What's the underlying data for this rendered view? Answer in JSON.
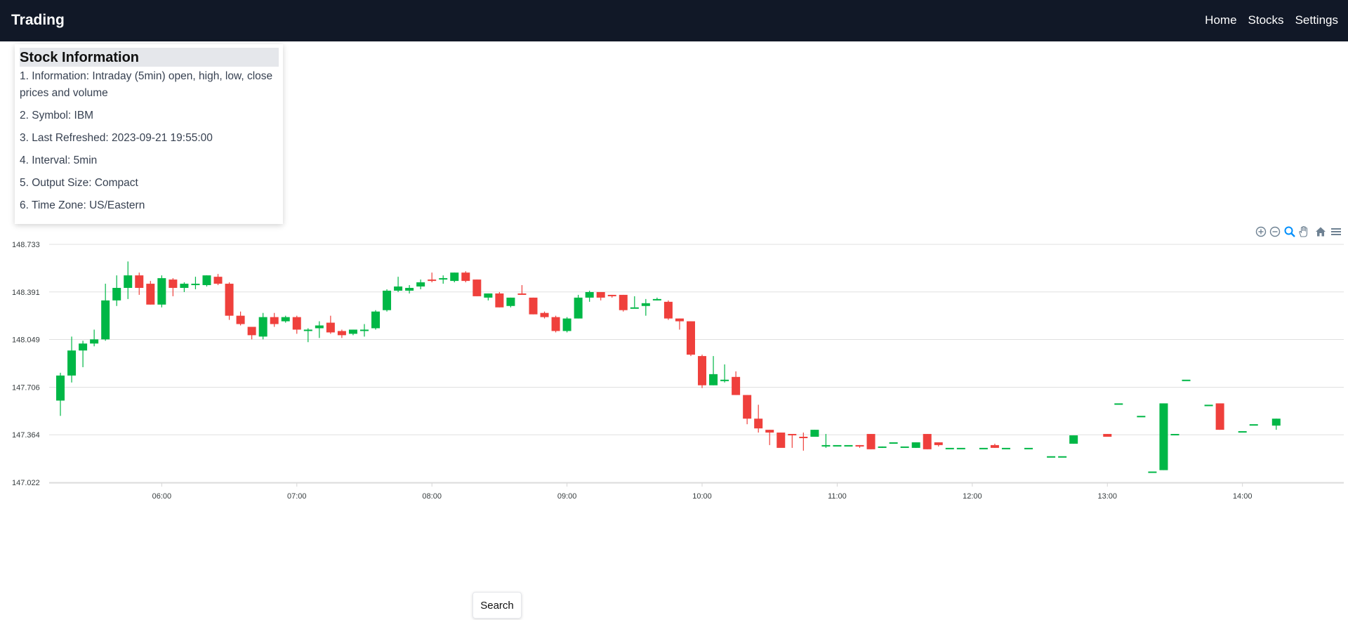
{
  "header": {
    "brand": "Trading",
    "nav": [
      "Home",
      "Stocks",
      "Settings"
    ]
  },
  "info": {
    "title": "Stock Information",
    "lines": [
      "1. Information: Intraday (5min) open, high, low, close prices and volume",
      "2. Symbol: IBM",
      "3. Last Refreshed: 2023-09-21 19:55:00",
      "4. Interval: 5min",
      "5. Output Size: Compact",
      "6. Time Zone: US/Eastern"
    ]
  },
  "toolbar": {
    "icons": [
      "zoom-in-icon",
      "zoom-out-icon",
      "selection-zoom-icon",
      "pan-hand-icon",
      "home-icon",
      "menu-icon"
    ],
    "active": "selection-zoom-icon",
    "color": "#6e8192",
    "active_color": "#008ffb"
  },
  "search": {
    "label": "Search"
  },
  "chart_data": {
    "type": "candlestick",
    "up_color": "#00b746",
    "down_color": "#ef403c",
    "yticks": [
      "148.733",
      "148.391",
      "148.049",
      "147.706",
      "147.364",
      "147.022"
    ],
    "ylim": [
      147.022,
      148.733
    ],
    "xlim": [
      "05:10",
      "14:45"
    ],
    "xticks": [
      "06:00",
      "07:00",
      "08:00",
      "09:00",
      "10:00",
      "11:00",
      "12:00",
      "13:00",
      "14:00"
    ],
    "candles": [
      {
        "t": "05:15",
        "o": 147.61,
        "h": 147.81,
        "l": 147.5,
        "c": 147.79
      },
      {
        "t": "05:20",
        "o": 147.79,
        "h": 148.07,
        "l": 147.74,
        "c": 147.97
      },
      {
        "t": "05:25",
        "o": 147.97,
        "h": 148.04,
        "l": 147.85,
        "c": 148.02
      },
      {
        "t": "05:30",
        "o": 148.02,
        "h": 148.12,
        "l": 148.0,
        "c": 148.05
      },
      {
        "t": "05:35",
        "o": 148.05,
        "h": 148.45,
        "l": 148.04,
        "c": 148.33
      },
      {
        "t": "05:40",
        "o": 148.33,
        "h": 148.51,
        "l": 148.29,
        "c": 148.42
      },
      {
        "t": "05:45",
        "o": 148.42,
        "h": 148.61,
        "l": 148.34,
        "c": 148.51
      },
      {
        "t": "05:50",
        "o": 148.51,
        "h": 148.53,
        "l": 148.37,
        "c": 148.42
      },
      {
        "t": "05:55",
        "o": 148.45,
        "h": 148.47,
        "l": 148.3,
        "c": 148.3
      },
      {
        "t": "06:00",
        "o": 148.3,
        "h": 148.51,
        "l": 148.28,
        "c": 148.49
      },
      {
        "t": "06:05",
        "o": 148.48,
        "h": 148.49,
        "l": 148.36,
        "c": 148.42
      },
      {
        "t": "06:10",
        "o": 148.42,
        "h": 148.46,
        "l": 148.39,
        "c": 148.45
      },
      {
        "t": "06:15",
        "o": 148.45,
        "h": 148.5,
        "l": 148.41,
        "c": 148.45
      },
      {
        "t": "06:20",
        "o": 148.44,
        "h": 148.51,
        "l": 148.43,
        "c": 148.51
      },
      {
        "t": "06:25",
        "o": 148.5,
        "h": 148.52,
        "l": 148.44,
        "c": 148.45
      },
      {
        "t": "06:30",
        "o": 148.45,
        "h": 148.46,
        "l": 148.19,
        "c": 148.22
      },
      {
        "t": "06:35",
        "o": 148.22,
        "h": 148.25,
        "l": 148.15,
        "c": 148.16
      },
      {
        "t": "06:40",
        "o": 148.14,
        "h": 148.14,
        "l": 148.05,
        "c": 148.08
      },
      {
        "t": "06:45",
        "o": 148.07,
        "h": 148.24,
        "l": 148.05,
        "c": 148.21
      },
      {
        "t": "06:50",
        "o": 148.21,
        "h": 148.24,
        "l": 148.14,
        "c": 148.16
      },
      {
        "t": "06:55",
        "o": 148.18,
        "h": 148.22,
        "l": 148.17,
        "c": 148.21
      },
      {
        "t": "07:00",
        "o": 148.21,
        "h": 148.22,
        "l": 148.09,
        "c": 148.12
      },
      {
        "t": "07:05",
        "o": 148.11,
        "h": 148.13,
        "l": 148.03,
        "c": 148.12
      },
      {
        "t": "07:10",
        "o": 148.13,
        "h": 148.18,
        "l": 148.06,
        "c": 148.15
      },
      {
        "t": "07:15",
        "o": 148.17,
        "h": 148.22,
        "l": 148.09,
        "c": 148.1
      },
      {
        "t": "07:20",
        "o": 148.11,
        "h": 148.12,
        "l": 148.06,
        "c": 148.08
      },
      {
        "t": "07:25",
        "o": 148.09,
        "h": 148.12,
        "l": 148.08,
        "c": 148.12
      },
      {
        "t": "07:30",
        "o": 148.12,
        "h": 148.16,
        "l": 148.07,
        "c": 148.12
      },
      {
        "t": "07:35",
        "o": 148.13,
        "h": 148.26,
        "l": 148.12,
        "c": 148.25
      },
      {
        "t": "07:40",
        "o": 148.26,
        "h": 148.41,
        "l": 148.25,
        "c": 148.4
      },
      {
        "t": "07:45",
        "o": 148.4,
        "h": 148.5,
        "l": 148.39,
        "c": 148.43
      },
      {
        "t": "07:50",
        "o": 148.4,
        "h": 148.44,
        "l": 148.38,
        "c": 148.42
      },
      {
        "t": "07:55",
        "o": 148.43,
        "h": 148.48,
        "l": 148.41,
        "c": 148.46
      },
      {
        "t": "08:00",
        "o": 148.48,
        "h": 148.53,
        "l": 148.46,
        "c": 148.47
      },
      {
        "t": "08:05",
        "o": 148.49,
        "h": 148.51,
        "l": 148.45,
        "c": 148.49
      },
      {
        "t": "08:10",
        "o": 148.47,
        "h": 148.53,
        "l": 148.46,
        "c": 148.53
      },
      {
        "t": "08:15",
        "o": 148.53,
        "h": 148.54,
        "l": 148.46,
        "c": 148.47
      },
      {
        "t": "08:20",
        "o": 148.48,
        "h": 148.48,
        "l": 148.36,
        "c": 148.36
      },
      {
        "t": "08:25",
        "o": 148.35,
        "h": 148.38,
        "l": 148.33,
        "c": 148.38
      },
      {
        "t": "08:30",
        "o": 148.38,
        "h": 148.39,
        "l": 148.28,
        "c": 148.28
      },
      {
        "t": "08:35",
        "o": 148.29,
        "h": 148.35,
        "l": 148.28,
        "c": 148.35
      },
      {
        "t": "08:40",
        "o": 148.38,
        "h": 148.44,
        "l": 148.37,
        "c": 148.37
      },
      {
        "t": "08:45",
        "o": 148.35,
        "h": 148.35,
        "l": 148.23,
        "c": 148.23
      },
      {
        "t": "08:50",
        "o": 148.24,
        "h": 148.25,
        "l": 148.2,
        "c": 148.21
      },
      {
        "t": "08:55",
        "o": 148.21,
        "h": 148.22,
        "l": 148.1,
        "c": 148.11
      },
      {
        "t": "09:00",
        "o": 148.11,
        "h": 148.21,
        "l": 148.1,
        "c": 148.2
      },
      {
        "t": "09:05",
        "o": 148.2,
        "h": 148.37,
        "l": 148.2,
        "c": 148.35
      },
      {
        "t": "09:10",
        "o": 148.35,
        "h": 148.4,
        "l": 148.32,
        "c": 148.39
      },
      {
        "t": "09:15",
        "o": 148.39,
        "h": 148.39,
        "l": 148.33,
        "c": 148.35
      },
      {
        "t": "09:20",
        "o": 148.37,
        "h": 148.37,
        "l": 148.35,
        "c": 148.36
      },
      {
        "t": "09:25",
        "o": 148.37,
        "h": 148.37,
        "l": 148.25,
        "c": 148.26
      },
      {
        "t": "09:30",
        "o": 148.28,
        "h": 148.36,
        "l": 148.28,
        "c": 148.28
      },
      {
        "t": "09:35",
        "o": 148.29,
        "h": 148.34,
        "l": 148.22,
        "c": 148.31
      },
      {
        "t": "09:40",
        "o": 148.33,
        "h": 148.35,
        "l": 148.33,
        "c": 148.34
      },
      {
        "t": "09:45",
        "o": 148.32,
        "h": 148.33,
        "l": 148.19,
        "c": 148.2
      },
      {
        "t": "09:50",
        "o": 148.2,
        "h": 148.2,
        "l": 148.12,
        "c": 148.18
      },
      {
        "t": "09:55",
        "o": 148.18,
        "h": 148.18,
        "l": 147.93,
        "c": 147.94
      },
      {
        "t": "10:00",
        "o": 147.93,
        "h": 147.94,
        "l": 147.7,
        "c": 147.72
      },
      {
        "t": "10:05",
        "o": 147.72,
        "h": 147.93,
        "l": 147.72,
        "c": 147.8
      },
      {
        "t": "10:10",
        "o": 147.76,
        "h": 147.87,
        "l": 147.74,
        "c": 147.76
      },
      {
        "t": "10:15",
        "o": 147.78,
        "h": 147.82,
        "l": 147.65,
        "c": 147.65
      },
      {
        "t": "10:20",
        "o": 147.65,
        "h": 147.65,
        "l": 147.44,
        "c": 147.48
      },
      {
        "t": "10:25",
        "o": 147.48,
        "h": 147.58,
        "l": 147.38,
        "c": 147.41
      },
      {
        "t": "10:30",
        "o": 147.4,
        "h": 147.4,
        "l": 147.29,
        "c": 147.38
      },
      {
        "t": "10:35",
        "o": 147.38,
        "h": 147.38,
        "l": 147.28,
        "c": 147.27
      },
      {
        "t": "10:40",
        "o": 147.37,
        "h": 147.37,
        "l": 147.27,
        "c": 147.36
      },
      {
        "t": "10:45",
        "o": 147.35,
        "h": 147.38,
        "l": 147.25,
        "c": 147.34
      },
      {
        "t": "10:50",
        "o": 147.35,
        "h": 147.4,
        "l": 147.35,
        "c": 147.4
      },
      {
        "t": "10:55",
        "o": 147.28,
        "h": 147.37,
        "l": 147.27,
        "c": 147.29
      },
      {
        "t": "11:00",
        "o": 147.29,
        "h": 147.29,
        "l": 147.29,
        "c": 147.29
      },
      {
        "t": "11:05",
        "o": 147.29,
        "h": 147.29,
        "l": 147.29,
        "c": 147.29
      },
      {
        "t": "11:10",
        "o": 147.29,
        "h": 147.29,
        "l": 147.27,
        "c": 147.28
      },
      {
        "t": "11:15",
        "o": 147.37,
        "h": 147.37,
        "l": 147.26,
        "c": 147.26
      },
      {
        "t": "11:20",
        "o": 147.27,
        "h": 147.28,
        "l": 147.27,
        "c": 147.28
      },
      {
        "t": "11:25",
        "o": 147.3,
        "h": 147.3,
        "l": 147.3,
        "c": 147.31
      },
      {
        "t": "11:30",
        "o": 147.28,
        "h": 147.28,
        "l": 147.28,
        "c": 147.28
      },
      {
        "t": "11:35",
        "o": 147.27,
        "h": 147.31,
        "l": 147.27,
        "c": 147.31
      },
      {
        "t": "11:40",
        "o": 147.37,
        "h": 147.37,
        "l": 147.26,
        "c": 147.26
      },
      {
        "t": "11:45",
        "o": 147.31,
        "h": 147.31,
        "l": 147.28,
        "c": 147.29
      },
      {
        "t": "11:50",
        "o": 147.27,
        "h": 147.27,
        "l": 147.27,
        "c": 147.27
      },
      {
        "t": "11:55",
        "o": 147.27,
        "h": 147.27,
        "l": 147.27,
        "c": 147.27
      },
      {
        "t": "12:05",
        "o": 147.27,
        "h": 147.27,
        "l": 147.27,
        "c": 147.27
      },
      {
        "t": "12:10",
        "o": 147.29,
        "h": 147.3,
        "l": 147.27,
        "c": 147.27
      },
      {
        "t": "12:15",
        "o": 147.27,
        "h": 147.27,
        "l": 147.27,
        "c": 147.27
      },
      {
        "t": "12:25",
        "o": 147.27,
        "h": 147.27,
        "l": 147.27,
        "c": 147.27
      },
      {
        "t": "12:35",
        "o": 147.21,
        "h": 147.21,
        "l": 147.21,
        "c": 147.21
      },
      {
        "t": "12:40",
        "o": 147.21,
        "h": 147.21,
        "l": 147.21,
        "c": 147.21
      },
      {
        "t": "12:45",
        "o": 147.3,
        "h": 147.36,
        "l": 147.3,
        "c": 147.36
      },
      {
        "t": "13:00",
        "o": 147.37,
        "h": 147.37,
        "l": 147.35,
        "c": 147.35
      },
      {
        "t": "13:05",
        "o": 147.59,
        "h": 147.59,
        "l": 147.59,
        "c": 147.59
      },
      {
        "t": "13:15",
        "o": 147.5,
        "h": 147.5,
        "l": 147.5,
        "c": 147.5
      },
      {
        "t": "13:20",
        "o": 147.1,
        "h": 147.1,
        "l": 147.1,
        "c": 147.1
      },
      {
        "t": "13:25",
        "o": 147.11,
        "h": 147.59,
        "l": 147.11,
        "c": 147.59
      },
      {
        "t": "13:30",
        "o": 147.37,
        "h": 147.37,
        "l": 147.37,
        "c": 147.37
      },
      {
        "t": "13:35",
        "o": 147.76,
        "h": 147.76,
        "l": 147.76,
        "c": 147.76
      },
      {
        "t": "13:45",
        "o": 147.58,
        "h": 147.58,
        "l": 147.58,
        "c": 147.58
      },
      {
        "t": "13:50",
        "o": 147.59,
        "h": 147.59,
        "l": 147.4,
        "c": 147.4
      },
      {
        "t": "14:00",
        "o": 147.39,
        "h": 147.39,
        "l": 147.39,
        "c": 147.39
      },
      {
        "t": "14:05",
        "o": 147.44,
        "h": 147.44,
        "l": 147.44,
        "c": 147.44
      },
      {
        "t": "14:15",
        "o": 147.43,
        "h": 147.48,
        "l": 147.4,
        "c": 147.48
      }
    ]
  }
}
